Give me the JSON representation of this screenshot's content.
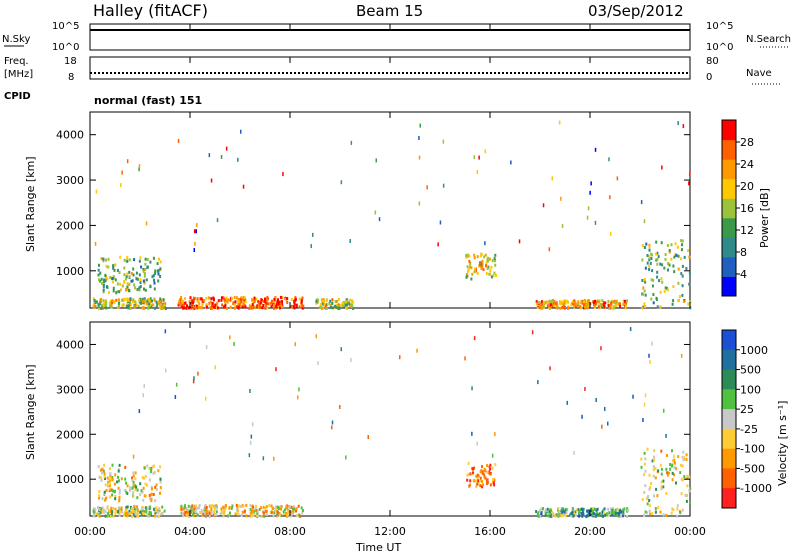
{
  "header": {
    "station": "Halley (fitACF)",
    "beam": "Beam 15",
    "date": "03/Sep/2012"
  },
  "side_labels": {
    "nsky": "N.Sky",
    "freq_line1": "Freq.",
    "freq_line2": "[MHz]",
    "cpid": "CPID",
    "nsearch": "N.Search",
    "nave": "Nave"
  },
  "noise_axis": {
    "left": [
      "10^5",
      "10^0"
    ],
    "right": [
      "10^5",
      "10^0"
    ]
  },
  "freq_axis": {
    "left": [
      "18",
      "8"
    ],
    "right": [
      "80",
      "0"
    ]
  },
  "cpid_text": "normal (fast) 151",
  "time_axis": {
    "title": "Time UT",
    "ticks": [
      "00:00",
      "04:00",
      "08:00",
      "12:00",
      "16:00",
      "20:00",
      "00:00"
    ]
  },
  "power_panel": {
    "ylabel": "Slant Range [km]",
    "yticks": [
      "1000",
      "2000",
      "3000",
      "4000"
    ],
    "colorbar_title": "Power [dB]",
    "colorbar_ticks": [
      "4",
      "8",
      "12",
      "16",
      "20",
      "24",
      "28"
    ],
    "colors": [
      "#0000ff",
      "#1f5fbf",
      "#2f8a8a",
      "#3a9a4a",
      "#9ac23a",
      "#ffc800",
      "#ff9900",
      "#ff6000",
      "#ff0000"
    ]
  },
  "velocity_panel": {
    "ylabel": "Slant Range [km]",
    "yticks": [
      "1000",
      "2000",
      "3000",
      "4000"
    ],
    "colorbar_title": "Velocity [m s⁻¹]",
    "colorbar_ticks": [
      "1000",
      "500",
      "100",
      "25",
      "-25",
      "-100",
      "-500",
      "-1000"
    ],
    "colors": [
      "#1a4fd6",
      "#1f6fa0",
      "#2e8b57",
      "#4fc040",
      "#c8c8c8",
      "#ffcc33",
      "#ff9900",
      "#ff6000",
      "#ff2020"
    ]
  },
  "chart_data": {
    "type": "heatmap",
    "x_range_hours": [
      0,
      24
    ],
    "y_range_km": [
      180,
      4500
    ],
    "power_regions": [
      {
        "t0": 0.3,
        "t1": 2.8,
        "r0": 550,
        "r1": 1350,
        "level": 0.45
      },
      {
        "t0": 0.1,
        "t1": 3.0,
        "r0": 200,
        "r1": 420,
        "level": 0.55
      },
      {
        "t0": 3.5,
        "t1": 8.5,
        "r0": 200,
        "r1": 450,
        "level": 0.85
      },
      {
        "t0": 9.0,
        "t1": 10.5,
        "r0": 200,
        "r1": 400,
        "level": 0.55
      },
      {
        "t0": 15.0,
        "t1": 16.2,
        "r0": 850,
        "r1": 1400,
        "level": 0.6
      },
      {
        "t0": 17.8,
        "t1": 21.5,
        "r0": 200,
        "r1": 380,
        "level": 0.7
      },
      {
        "t0": 22.0,
        "t1": 24.0,
        "r0": 200,
        "r1": 1700,
        "level": 0.45
      }
    ],
    "velocity_regions": [
      {
        "t0": 0.3,
        "t1": 2.8,
        "r0": 550,
        "r1": 1350,
        "level": 0.55
      },
      {
        "t0": 0.1,
        "t1": 3.0,
        "r0": 200,
        "r1": 420,
        "level": 0.5
      },
      {
        "t0": 3.5,
        "t1": 8.5,
        "r0": 200,
        "r1": 450,
        "level": 0.6
      },
      {
        "t0": 15.0,
        "t1": 16.2,
        "r0": 850,
        "r1": 1400,
        "level": 0.8
      },
      {
        "t0": 17.8,
        "t1": 21.5,
        "r0": 200,
        "r1": 380,
        "level": 0.35
      },
      {
        "t0": 22.0,
        "t1": 24.0,
        "r0": 200,
        "r1": 1700,
        "level": 0.55
      }
    ]
  }
}
